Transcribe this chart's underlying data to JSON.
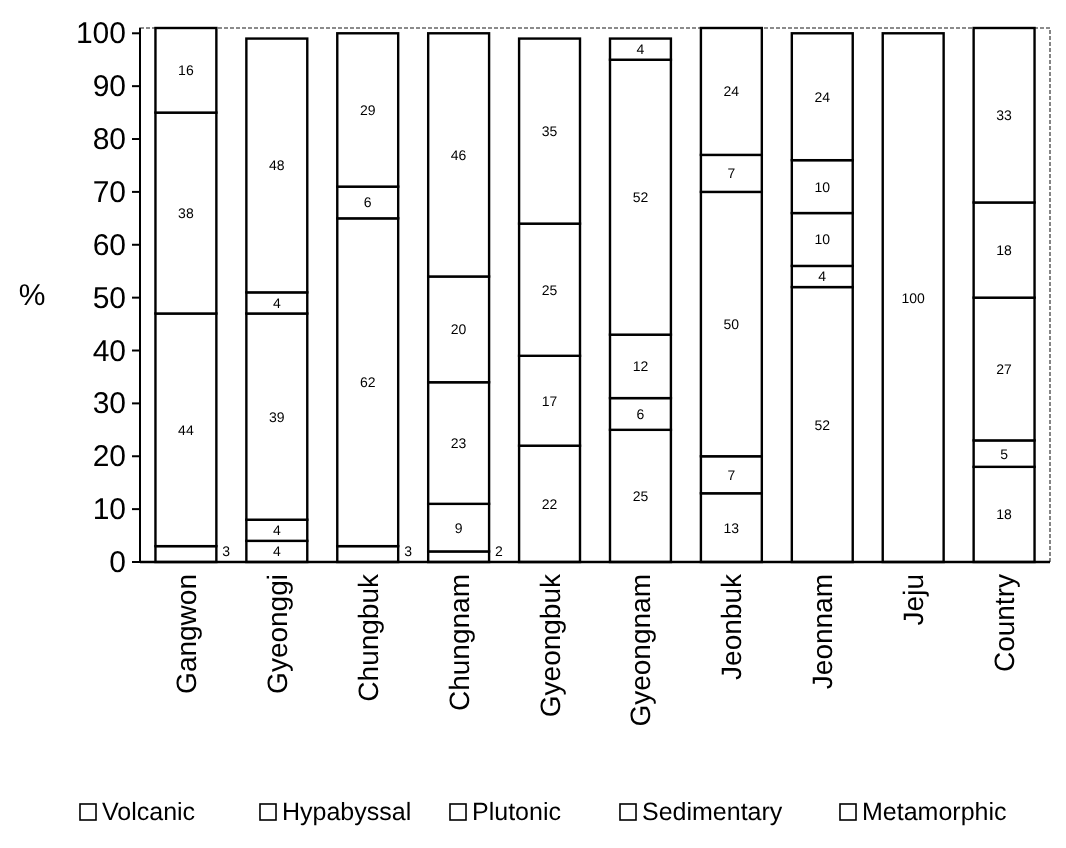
{
  "chart_data": {
    "type": "bar",
    "stacked": true,
    "ylabel": "%",
    "categories": [
      "Gangwon",
      "Gyeonggi",
      "Chungbuk",
      "Chungnam",
      "Gyeongbuk",
      "Gyeongnam",
      "Jeonbuk",
      "Jeonnam",
      "Jeju",
      "Country"
    ],
    "series": [
      {
        "name": "Volcanic",
        "color": "#ffffff",
        "values": [
          3,
          4,
          3,
          2,
          22,
          25,
          13,
          52,
          100,
          18
        ]
      },
      {
        "name": "Hypabyssal",
        "color": "#ffffff",
        "values": [
          null,
          4,
          null,
          9,
          null,
          6,
          7,
          4,
          null,
          5
        ]
      },
      {
        "name": "Plutonic",
        "color": "#ffffff",
        "values": [
          44,
          39,
          62,
          23,
          17,
          12,
          50,
          10,
          null,
          27
        ]
      },
      {
        "name": "Sedimentary",
        "color": "#ffffff",
        "values": [
          38,
          4,
          6,
          20,
          25,
          52,
          7,
          10,
          null,
          18
        ]
      },
      {
        "name": "Metamorphic",
        "color": "#ffffff",
        "values": [
          16,
          48,
          29,
          46,
          35,
          4,
          24,
          24,
          null,
          33
        ]
      }
    ],
    "ylim": [
      0,
      101
    ],
    "yticks": [
      0,
      10,
      20,
      30,
      40,
      50,
      60,
      70,
      80,
      90,
      100
    ],
    "data_labels": true,
    "legend": "bottom"
  }
}
